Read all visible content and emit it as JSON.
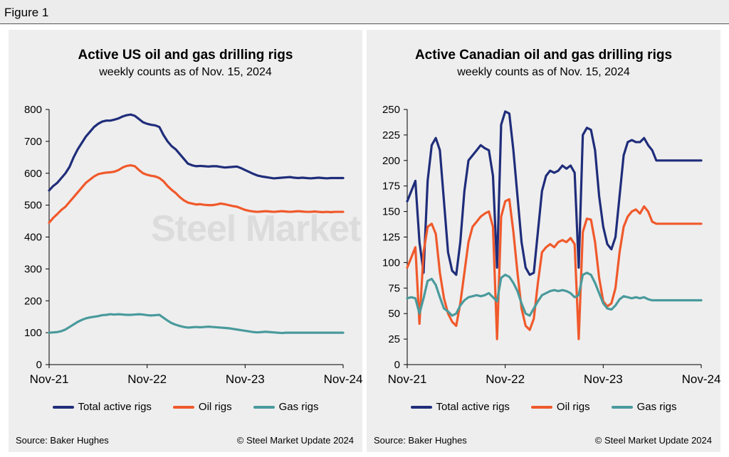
{
  "figure_label": "Figure 1",
  "colors": {
    "total": "#1f2d7a",
    "oil": "#f0592b",
    "gas": "#4a9a9c"
  },
  "legend": {
    "total": "Total active rigs",
    "oil": "Oil rigs",
    "gas": "Gas rigs"
  },
  "footer": {
    "source": "Source: Baker Hughes",
    "copyright": "© Steel Market Update 2024"
  },
  "watermark": "Steel Market Update",
  "chart_data": [
    {
      "type": "line",
      "title": "Active US oil and gas drilling rigs",
      "subtitle": "weekly counts as of Nov. 15, 2024",
      "x_ticks": [
        "Nov-21",
        "Nov-22",
        "Nov-23",
        "Nov-24"
      ],
      "x": [
        0,
        0.5,
        1,
        1.5,
        2,
        2.5,
        3,
        3.5,
        4,
        4.5,
        5,
        5.5,
        6,
        6.5,
        7,
        7.5,
        8,
        8.5,
        9,
        9.5,
        10,
        10.5,
        11,
        11.5,
        12,
        12.5,
        13,
        13.5,
        14,
        14.5,
        15,
        15.5,
        16,
        16.5,
        17,
        17.5,
        18,
        18.5,
        19,
        19.5,
        20,
        20.5,
        21,
        21.5,
        22,
        22.5,
        23,
        23.5,
        24,
        24.5,
        25,
        25.5,
        26,
        26.5,
        27,
        27.5,
        28,
        28.5,
        29,
        29.5,
        30,
        30.5,
        31,
        31.5,
        32,
        32.5,
        33,
        33.5,
        34,
        34.5,
        35,
        35.5,
        36
      ],
      "xlim": [
        0,
        36
      ],
      "ylim": [
        0,
        800
      ],
      "y_ticks": [
        0,
        100,
        200,
        300,
        400,
        500,
        600,
        700,
        800
      ],
      "series": [
        {
          "name": "Total active rigs",
          "key": "total",
          "values": [
            546,
            560,
            570,
            585,
            600,
            620,
            650,
            675,
            695,
            715,
            730,
            745,
            755,
            762,
            765,
            765,
            768,
            772,
            778,
            782,
            784,
            780,
            770,
            760,
            755,
            752,
            750,
            745,
            720,
            700,
            685,
            675,
            660,
            645,
            630,
            625,
            622,
            623,
            622,
            621,
            622,
            622,
            620,
            618,
            619,
            620,
            621,
            616,
            610,
            604,
            598,
            593,
            590,
            588,
            586,
            584,
            585,
            586,
            587,
            588,
            586,
            585,
            586,
            585,
            584,
            585,
            586,
            585,
            584,
            585,
            585,
            585,
            585
          ]
        },
        {
          "name": "Oil rigs",
          "key": "oil",
          "values": [
            445,
            460,
            472,
            485,
            495,
            510,
            525,
            540,
            555,
            570,
            580,
            590,
            597,
            600,
            602,
            603,
            605,
            610,
            618,
            623,
            625,
            622,
            610,
            600,
            595,
            592,
            590,
            585,
            575,
            560,
            548,
            538,
            525,
            515,
            508,
            505,
            502,
            503,
            501,
            500,
            500,
            502,
            505,
            503,
            500,
            497,
            495,
            490,
            485,
            482,
            480,
            479,
            480,
            481,
            480,
            479,
            480,
            481,
            480,
            479,
            480,
            481,
            480,
            479,
            479,
            480,
            479,
            478,
            479,
            478,
            479,
            479,
            479
          ]
        },
        {
          "name": "Gas rigs",
          "key": "gas",
          "values": [
            100,
            101,
            102,
            105,
            110,
            118,
            126,
            134,
            140,
            145,
            148,
            150,
            152,
            155,
            156,
            158,
            157,
            158,
            157,
            156,
            156,
            157,
            158,
            157,
            155,
            154,
            155,
            156,
            147,
            138,
            130,
            125,
            121,
            118,
            116,
            117,
            118,
            117,
            118,
            119,
            118,
            117,
            116,
            115,
            114,
            112,
            110,
            108,
            106,
            104,
            102,
            101,
            102,
            103,
            102,
            101,
            100,
            99,
            100,
            100,
            100,
            100,
            100,
            100,
            100,
            100,
            100,
            100,
            100,
            100,
            100,
            100,
            100
          ]
        }
      ]
    },
    {
      "type": "line",
      "title": "Active Canadian oil and gas drilling rigs",
      "subtitle": "weekly counts as of Nov. 15, 2024",
      "x_ticks": [
        "Nov-21",
        "Nov-22",
        "Nov-23",
        "Nov-24"
      ],
      "x": [
        0,
        0.5,
        1,
        1.5,
        2,
        2.5,
        3,
        3.5,
        4,
        4.5,
        5,
        5.5,
        6,
        6.5,
        7,
        7.5,
        8,
        8.5,
        9,
        9.5,
        10,
        10.5,
        11,
        11.5,
        12,
        12.5,
        13,
        13.5,
        14,
        14.5,
        15,
        15.5,
        16,
        16.5,
        17,
        17.5,
        18,
        18.5,
        19,
        19.5,
        20,
        20.5,
        21,
        21.5,
        22,
        22.5,
        23,
        23.5,
        24,
        24.5,
        25,
        25.5,
        26,
        26.5,
        27,
        27.5,
        28,
        28.5,
        29,
        29.5,
        30,
        30.5,
        31,
        31.5,
        32,
        32.5,
        33,
        33.5,
        34,
        34.5,
        35,
        35.5,
        36
      ],
      "xlim": [
        0,
        36
      ],
      "ylim": [
        0,
        250
      ],
      "y_ticks": [
        0,
        25,
        50,
        75,
        100,
        125,
        150,
        175,
        200,
        225,
        250
      ],
      "series": [
        {
          "name": "Total active rigs",
          "key": "total",
          "values": [
            160,
            170,
            180,
            120,
            90,
            180,
            215,
            222,
            210,
            160,
            110,
            92,
            88,
            120,
            170,
            200,
            205,
            210,
            215,
            212,
            210,
            185,
            95,
            235,
            248,
            246,
            210,
            165,
            120,
            95,
            88,
            90,
            130,
            170,
            185,
            190,
            188,
            190,
            195,
            192,
            195,
            188,
            95,
            225,
            232,
            230,
            210,
            165,
            135,
            118,
            113,
            125,
            165,
            205,
            218,
            220,
            218,
            218,
            222,
            215,
            210,
            200,
            200,
            200,
            200,
            200,
            200,
            200,
            200,
            200,
            200,
            200,
            200
          ]
        },
        {
          "name": "Oil rigs",
          "key": "oil",
          "values": [
            95,
            105,
            115,
            40,
            110,
            135,
            138,
            128,
            90,
            65,
            50,
            42,
            38,
            60,
            90,
            120,
            135,
            140,
            145,
            148,
            150,
            135,
            25,
            145,
            160,
            162,
            130,
            90,
            55,
            38,
            34,
            45,
            80,
            110,
            115,
            118,
            115,
            120,
            122,
            120,
            124,
            118,
            25,
            130,
            143,
            142,
            120,
            85,
            62,
            57,
            60,
            75,
            110,
            135,
            145,
            150,
            152,
            148,
            155,
            150,
            140,
            138,
            138,
            138,
            138,
            138,
            138,
            138,
            138,
            138,
            138,
            138,
            138
          ]
        },
        {
          "name": "Gas rigs",
          "key": "gas",
          "values": [
            65,
            66,
            65,
            50,
            65,
            82,
            84,
            78,
            66,
            55,
            52,
            48,
            50,
            58,
            63,
            66,
            67,
            68,
            67,
            68,
            70,
            66,
            62,
            85,
            88,
            86,
            80,
            72,
            60,
            50,
            48,
            55,
            62,
            68,
            70,
            72,
            73,
            72,
            73,
            72,
            70,
            66,
            68,
            88,
            90,
            88,
            80,
            70,
            60,
            55,
            54,
            58,
            64,
            67,
            66,
            65,
            66,
            65,
            66,
            64,
            63,
            63,
            63,
            63,
            63,
            63,
            63,
            63,
            63,
            63,
            63,
            63,
            63
          ]
        }
      ]
    }
  ]
}
